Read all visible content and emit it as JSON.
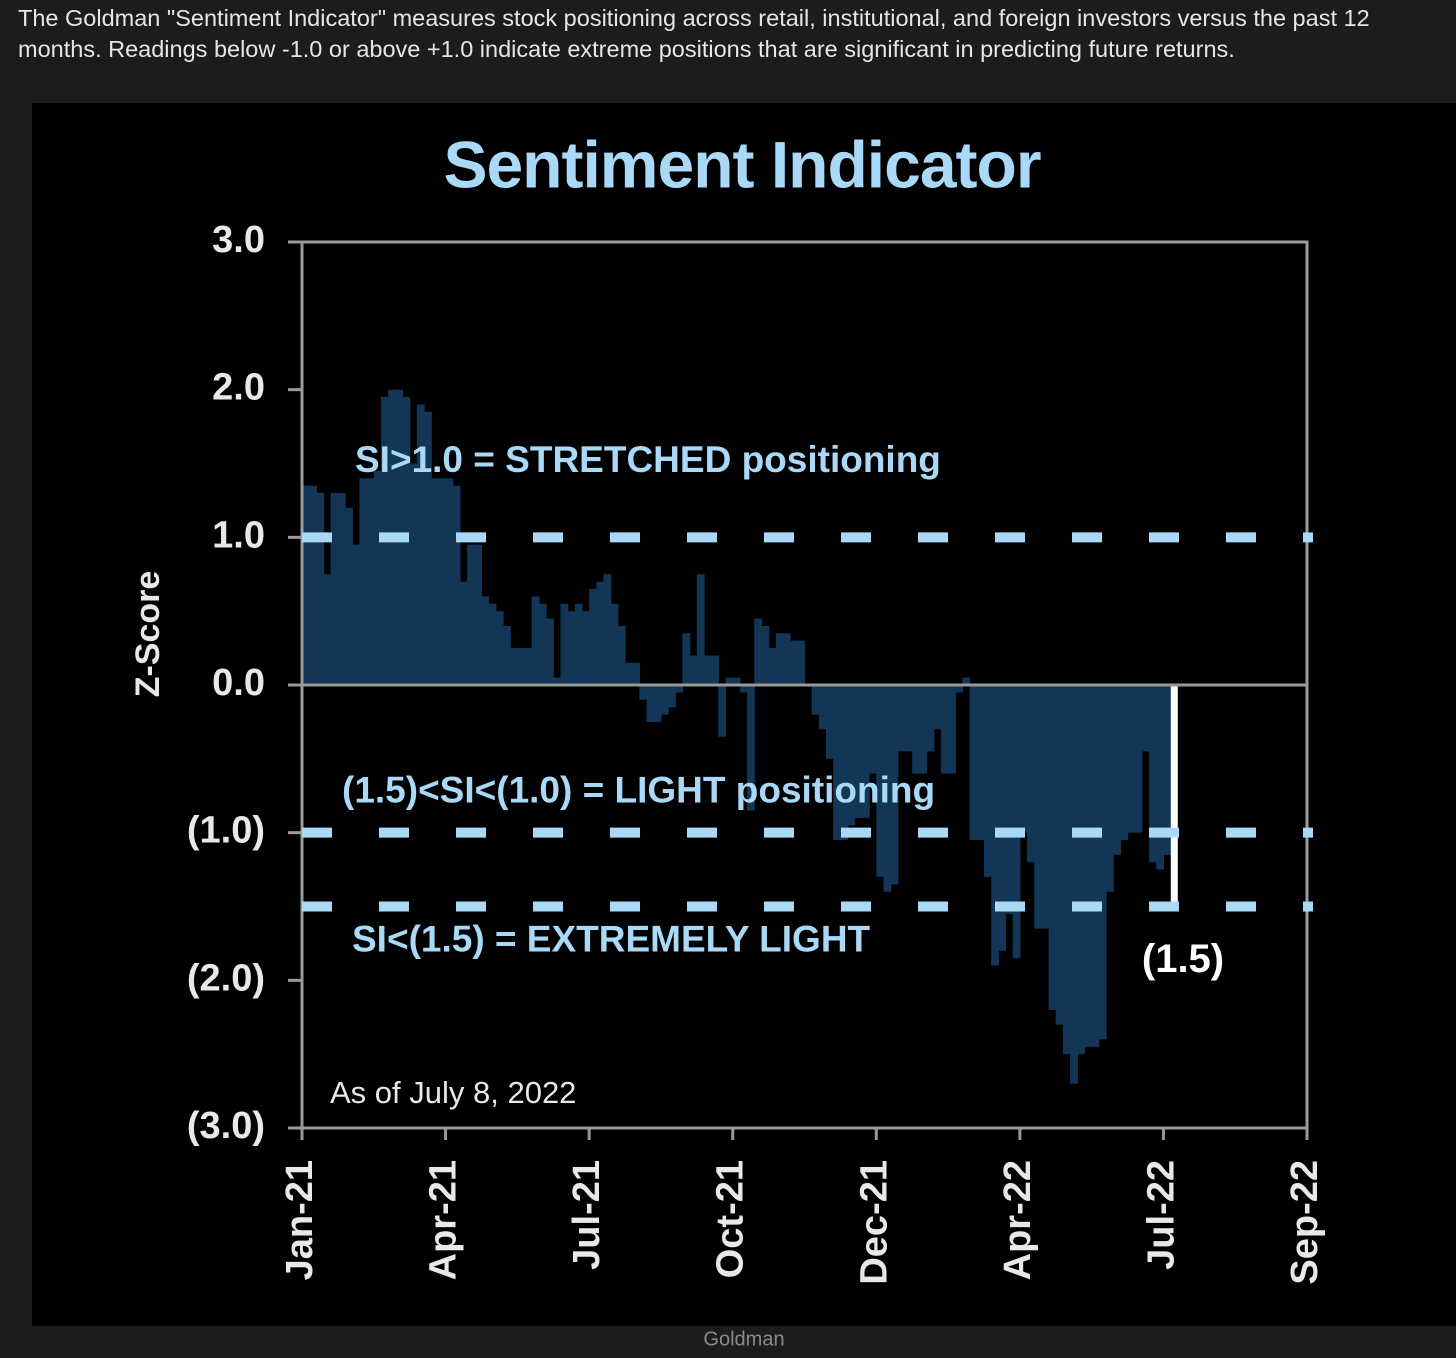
{
  "caption": "The Goldman \"Sentiment Indicator\" measures stock positioning across retail, institutional, and foreign investors versus the past 12 months. Readings below -1.0 or above +1.0 indicate extreme positions that are significant in predicting future returns.",
  "source": "Goldman",
  "chart_data": {
    "type": "bar",
    "title": "Sentiment Indicator",
    "y_label": "Z-Score",
    "note": "As of July 8, 2022",
    "annotation": "(1.5)",
    "color": "#133656",
    "last_bar_color": "#ffffff",
    "ylim": [
      -3,
      3
    ],
    "yticks": [
      {
        "value": 3,
        "label": "3.0"
      },
      {
        "value": 2,
        "label": "2.0"
      },
      {
        "value": 1,
        "label": "1.0"
      },
      {
        "value": 0,
        "label": "0.0"
      },
      {
        "value": -1,
        "label": "(1.0)"
      },
      {
        "value": -2,
        "label": "(2.0)"
      },
      {
        "value": -3,
        "label": "(3.0)"
      }
    ],
    "reference_lines": [
      {
        "value": 1,
        "label": "SI>1.0 = STRETCHED positioning"
      },
      {
        "value": -1,
        "label": "(1.5)<SI<(1.0) = LIGHT positioning"
      },
      {
        "value": -1.5,
        "label": "SI<(1.5) = EXTREMELY LIGHT"
      }
    ],
    "categories": [
      "Jan-21",
      null,
      null,
      null,
      null,
      null,
      null,
      null,
      null,
      null,
      null,
      null,
      null,
      null,
      null,
      null,
      null,
      null,
      null,
      null,
      "Apr-21",
      null,
      null,
      null,
      null,
      null,
      null,
      null,
      null,
      null,
      null,
      null,
      null,
      null,
      null,
      null,
      null,
      null,
      null,
      null,
      "Jul-21",
      null,
      null,
      null,
      null,
      null,
      null,
      null,
      null,
      null,
      null,
      null,
      null,
      null,
      null,
      null,
      null,
      null,
      null,
      null,
      "Oct-21",
      null,
      null,
      null,
      null,
      null,
      null,
      null,
      null,
      null,
      null,
      null,
      null,
      null,
      null,
      null,
      null,
      null,
      null,
      null,
      "Dec-21",
      null,
      null,
      null,
      null,
      null,
      null,
      null,
      null,
      null,
      null,
      null,
      null,
      null,
      null,
      null,
      null,
      null,
      null,
      null,
      "Apr-22",
      null,
      null,
      null,
      null,
      null,
      null,
      null,
      null,
      null,
      null,
      null,
      null,
      null,
      null,
      null,
      null,
      null,
      null,
      null,
      "Jul-22",
      null,
      null,
      null,
      null,
      null,
      null,
      null,
      null,
      null,
      null,
      null,
      null,
      null,
      null,
      null,
      null,
      null,
      null,
      null,
      "Sep-22"
    ],
    "values": [
      1.35,
      1.35,
      1.3,
      0.75,
      1.3,
      1.3,
      1.2,
      0.95,
      1.4,
      1.4,
      1.45,
      1.95,
      2.0,
      2.0,
      1.95,
      1.5,
      1.9,
      1.85,
      1.4,
      1.4,
      1.4,
      1.35,
      0.7,
      0.95,
      0.95,
      0.6,
      0.55,
      0.5,
      0.4,
      0.25,
      0.25,
      0.25,
      0.6,
      0.55,
      0.45,
      0.05,
      0.55,
      0.5,
      0.55,
      0.5,
      0.65,
      0.7,
      0.75,
      0.55,
      0.4,
      0.15,
      0.15,
      -0.1,
      -0.25,
      -0.25,
      -0.2,
      -0.15,
      -0.05,
      0.35,
      0.2,
      0.75,
      0.2,
      0.2,
      -0.35,
      0.05,
      0.05,
      -0.05,
      -0.85,
      0.45,
      0.4,
      0.25,
      0.35,
      0.35,
      0.3,
      0.3,
      0,
      -0.2,
      -0.3,
      -0.5,
      -1.05,
      -1.05,
      -0.95,
      -0.9,
      -0.9,
      -0.6,
      -1.3,
      -1.4,
      -1.35,
      -0.45,
      -0.45,
      -0.6,
      -0.6,
      -0.45,
      -0.3,
      -0.6,
      -0.6,
      -0.05,
      0.05,
      -1.05,
      -1.05,
      -1.3,
      -1.9,
      -1.8,
      -1.55,
      -1.85,
      -1.0,
      -1.2,
      -1.65,
      -1.65,
      -2.2,
      -2.3,
      -2.5,
      -2.7,
      -2.5,
      -2.45,
      -2.45,
      -2.4,
      -1.4,
      -1.15,
      -1.05,
      -1.0,
      -1.0,
      -0.45,
      -1.2,
      -1.25,
      -1.15,
      -1.5,
      null,
      null,
      null,
      null,
      null,
      null,
      null,
      null,
      null,
      null,
      null,
      null,
      null,
      null,
      null,
      null,
      null,
      null,
      null
    ]
  }
}
